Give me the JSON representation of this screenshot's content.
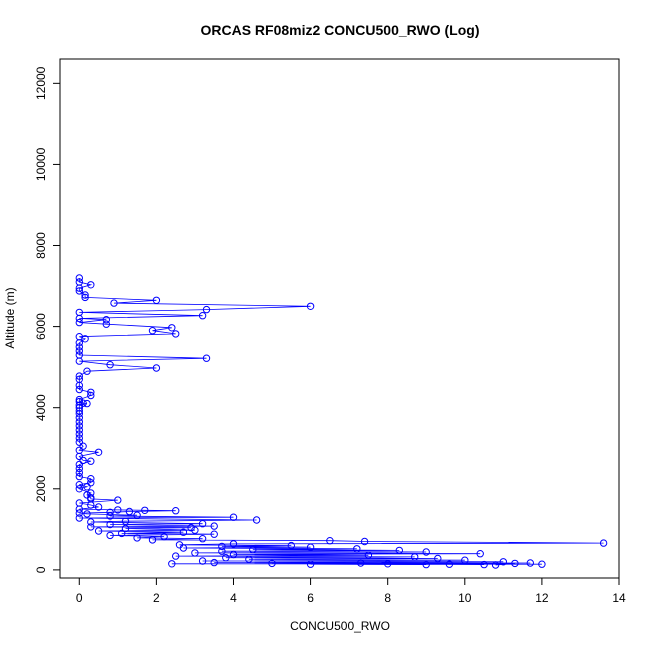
{
  "chart_data": {
    "type": "line",
    "title": "ORCAS RF08miz2 CONCU500_RWO (Log)",
    "xlabel": "CONCU500_RWO",
    "ylabel": "Altitude (m)",
    "xlim": [
      -0.5,
      14.0
    ],
    "ylim": [
      -200,
      12600
    ],
    "xticks": [
      0,
      2,
      4,
      6,
      8,
      10,
      12,
      14
    ],
    "yticks": [
      0,
      2000,
      4000,
      6000,
      8000,
      10000,
      12000
    ],
    "grid": false,
    "series": [
      {
        "color": "#0000ff",
        "marker": "open-circle",
        "points": [
          [
            0.0,
            7200
          ],
          [
            0.0,
            7100
          ],
          [
            0.3,
            7030
          ],
          [
            0.0,
            6950
          ],
          [
            0.0,
            6880
          ],
          [
            0.15,
            6780
          ],
          [
            0.15,
            6720
          ],
          [
            2.0,
            6650
          ],
          [
            0.9,
            6580
          ],
          [
            6.0,
            6500
          ],
          [
            3.3,
            6420
          ],
          [
            0.0,
            6350
          ],
          [
            3.2,
            6270
          ],
          [
            0.0,
            6200
          ],
          [
            0.7,
            6170
          ],
          [
            0.0,
            6100
          ],
          [
            0.7,
            6060
          ],
          [
            2.4,
            5970
          ],
          [
            1.9,
            5900
          ],
          [
            2.5,
            5820
          ],
          [
            0.0,
            5750
          ],
          [
            0.15,
            5700
          ],
          [
            0.0,
            5600
          ],
          [
            0.0,
            5500
          ],
          [
            0.0,
            5400
          ],
          [
            0.0,
            5300
          ],
          [
            3.3,
            5220
          ],
          [
            0.0,
            5150
          ],
          [
            0.8,
            5060
          ],
          [
            2.0,
            4980
          ],
          [
            0.2,
            4900
          ],
          [
            0.0,
            4780
          ],
          [
            0.0,
            4700
          ],
          [
            0.0,
            4550
          ],
          [
            0.0,
            4450
          ],
          [
            0.3,
            4380
          ],
          [
            0.3,
            4300
          ],
          [
            0.0,
            4200
          ],
          [
            0.0,
            4150
          ],
          [
            0.1,
            4110
          ],
          [
            0.2,
            4100
          ],
          [
            0.0,
            4060
          ],
          [
            0.0,
            4000
          ],
          [
            0.0,
            3920
          ],
          [
            0.0,
            3850
          ],
          [
            0.0,
            3750
          ],
          [
            0.0,
            3650
          ],
          [
            0.0,
            3550
          ],
          [
            0.0,
            3450
          ],
          [
            0.0,
            3350
          ],
          [
            0.0,
            3250
          ],
          [
            0.0,
            3150
          ],
          [
            0.1,
            3050
          ],
          [
            0.0,
            2950
          ],
          [
            0.5,
            2900
          ],
          [
            0.0,
            2800
          ],
          [
            0.1,
            2700
          ],
          [
            0.3,
            2680
          ],
          [
            0.0,
            2600
          ],
          [
            0.0,
            2500
          ],
          [
            0.0,
            2400
          ],
          [
            0.0,
            2300
          ],
          [
            0.3,
            2250
          ],
          [
            0.3,
            2150
          ],
          [
            0.0,
            2100
          ],
          [
            0.2,
            2050
          ],
          [
            0.0,
            2000
          ],
          [
            0.3,
            1900
          ],
          [
            0.2,
            1850
          ],
          [
            0.3,
            1780
          ],
          [
            0.3,
            1750
          ],
          [
            1.0,
            1720
          ],
          [
            0.0,
            1650
          ],
          [
            0.3,
            1600
          ],
          [
            0.5,
            1550
          ],
          [
            0.0,
            1500
          ],
          [
            1.0,
            1480
          ],
          [
            1.7,
            1470
          ],
          [
            2.5,
            1460
          ],
          [
            1.3,
            1440
          ],
          [
            0.8,
            1420
          ],
          [
            0.0,
            1400
          ],
          [
            0.2,
            1380
          ],
          [
            1.5,
            1350
          ],
          [
            0.8,
            1330
          ],
          [
            4.0,
            1300
          ],
          [
            0.0,
            1280
          ],
          [
            4.6,
            1230
          ],
          [
            1.2,
            1200
          ],
          [
            0.3,
            1180
          ],
          [
            3.2,
            1140
          ],
          [
            0.8,
            1120
          ],
          [
            3.5,
            1080
          ],
          [
            0.3,
            1060
          ],
          [
            2.9,
            1040
          ],
          [
            1.2,
            1020
          ],
          [
            3.0,
            980
          ],
          [
            0.5,
            960
          ],
          [
            2.7,
            930
          ],
          [
            1.1,
            900
          ],
          [
            3.5,
            880
          ],
          [
            0.8,
            850
          ],
          [
            2.2,
            820
          ],
          [
            1.5,
            790
          ],
          [
            3.2,
            770
          ],
          [
            1.9,
            740
          ],
          [
            6.5,
            720
          ],
          [
            7.4,
            700
          ],
          [
            13.6,
            660
          ],
          [
            4.0,
            640
          ],
          [
            2.6,
            620
          ],
          [
            5.5,
            600
          ],
          [
            3.7,
            580
          ],
          [
            6.0,
            560
          ],
          [
            2.7,
            540
          ],
          [
            7.2,
            520
          ],
          [
            4.5,
            500
          ],
          [
            8.3,
            480
          ],
          [
            3.7,
            460
          ],
          [
            9.0,
            440
          ],
          [
            3.0,
            420
          ],
          [
            10.4,
            400
          ],
          [
            4.0,
            380
          ],
          [
            7.5,
            360
          ],
          [
            2.5,
            340
          ],
          [
            8.7,
            320
          ],
          [
            3.8,
            300
          ],
          [
            9.3,
            280
          ],
          [
            4.4,
            260
          ],
          [
            10.0,
            240
          ],
          [
            3.2,
            220
          ],
          [
            11.0,
            200
          ],
          [
            3.5,
            180
          ],
          [
            11.7,
            170
          ],
          [
            2.4,
            150
          ],
          [
            12.0,
            140
          ],
          [
            5.0,
            160
          ],
          [
            10.5,
            130
          ],
          [
            8.0,
            150
          ],
          [
            6.0,
            140
          ],
          [
            9.0,
            130
          ],
          [
            7.3,
            170
          ],
          [
            9.6,
            140
          ],
          [
            11.3,
            160
          ],
          [
            10.8,
            120
          ]
        ]
      }
    ]
  }
}
